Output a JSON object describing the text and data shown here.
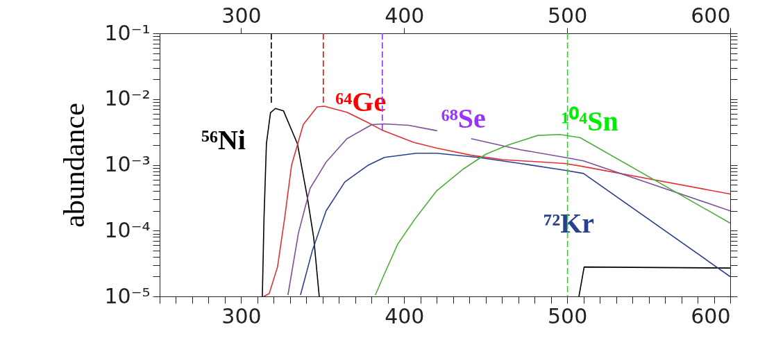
{
  "chart_data": {
    "type": "line",
    "ylabel": "abundance",
    "log": "y",
    "grid": false,
    "line_style": "solid",
    "marker": "none",
    "xlim": [
      250,
      600
    ],
    "x2lim": [
      250,
      600
    ],
    "xticks": [
      {
        "value": 250,
        "label": null
      },
      {
        "value": 260,
        "label": null
      },
      {
        "value": 270,
        "label": null
      },
      {
        "value": 280,
        "label": null
      },
      {
        "value": 290,
        "label": null
      },
      300,
      {
        "value": 310,
        "label": null
      },
      {
        "value": 320,
        "label": null
      },
      {
        "value": 330,
        "label": null
      },
      {
        "value": 340,
        "label": null
      },
      {
        "value": 350,
        "label": null
      },
      {
        "value": 360,
        "label": null
      },
      {
        "value": 370,
        "label": null
      },
      {
        "value": 380,
        "label": null
      },
      {
        "value": 390,
        "label": null
      },
      400,
      {
        "value": 410,
        "label": null
      },
      {
        "value": 420,
        "label": null
      },
      {
        "value": 430,
        "label": null
      },
      {
        "value": 440,
        "label": null
      },
      {
        "value": 450,
        "label": null
      },
      {
        "value": 460,
        "label": null
      },
      {
        "value": 470,
        "label": null
      },
      {
        "value": 480,
        "label": null
      },
      {
        "value": 490,
        "label": null
      },
      500,
      {
        "value": 510,
        "label": null
      },
      {
        "value": 520,
        "label": null
      },
      {
        "value": 530,
        "label": null
      },
      {
        "value": 540,
        "label": null
      },
      {
        "value": 550,
        "label": null
      },
      {
        "value": 560,
        "label": null
      },
      {
        "value": 570,
        "label": null
      },
      {
        "value": 580,
        "label": null
      },
      {
        "value": 590,
        "label": null
      },
      600
    ],
    "x2ticks": [
      300,
      400,
      500,
      600
    ],
    "ylim": [
      1e-05,
      0.1
    ],
    "yticks": [
      {
        "value": 1e-05,
        "label": "10⁻⁵"
      },
      {
        "value": 2e-05,
        "label": null
      },
      {
        "value": 3e-05,
        "label": null
      },
      {
        "value": 4e-05,
        "label": null
      },
      {
        "value": 5e-05,
        "label": null
      },
      {
        "value": 6e-05,
        "label": null
      },
      {
        "value": 7e-05,
        "label": null
      },
      {
        "value": 8e-05,
        "label": null
      },
      {
        "value": 9e-05,
        "label": null
      },
      {
        "value": 0.0001,
        "label": "10⁻⁴"
      },
      {
        "value": 0.0002,
        "label": null
      },
      {
        "value": 0.0003,
        "label": null
      },
      {
        "value": 0.0004,
        "label": null
      },
      {
        "value": 0.0005,
        "label": null
      },
      {
        "value": 0.0006,
        "label": null
      },
      {
        "value": 0.0007,
        "label": null
      },
      {
        "value": 0.0008,
        "label": null
      },
      {
        "value": 0.0009,
        "label": null
      },
      {
        "value": 0.001,
        "label": "10⁻³"
      },
      {
        "value": 0.002,
        "label": null
      },
      {
        "value": 0.003,
        "label": null
      },
      {
        "value": 0.004,
        "label": null
      },
      {
        "value": 0.005,
        "label": null
      },
      {
        "value": 0.006,
        "label": null
      },
      {
        "value": 0.007,
        "label": null
      },
      {
        "value": 0.008,
        "label": null
      },
      {
        "value": 0.009,
        "label": null
      },
      {
        "value": 0.01,
        "label": "10⁻²"
      },
      {
        "value": 0.02,
        "label": null
      },
      {
        "value": 0.03,
        "label": null
      },
      {
        "value": 0.04,
        "label": null
      },
      {
        "value": 0.05,
        "label": null
      },
      {
        "value": 0.06,
        "label": null
      },
      {
        "value": 0.07,
        "label": null
      },
      {
        "value": 0.08,
        "label": null
      },
      {
        "value": 0.09,
        "label": null
      },
      {
        "value": 0.1,
        "label": "10⁻¹"
      }
    ],
    "series": [
      {
        "color": "#000000",
        "x": [
          313.0,
          314.0,
          315.5,
          318,
          321,
          326,
          334.5,
          340.6,
          344.5,
          347.9
        ],
        "values": [
          1e-05,
          0.00015,
          0.0021,
          0.0062,
          0.0072,
          0.0066,
          0.0021,
          0.00032,
          7.8e-05,
          1e-05
        ]
      },
      {
        "color": "#000000",
        "x": [
          507.2,
          510.4,
          600
        ],
        "values": [
          1e-05,
          2.8e-05,
          2.7e-05
        ]
      },
      {
        "color": "#e03030",
        "x": [
          313.8,
          317.2,
          322.3,
          326.6,
          330.9,
          338.1,
          346.6,
          350.9,
          364.9,
          377.7,
          386.2,
          405.7,
          419.8,
          441.1,
          460.6,
          498.5,
          509.1,
          600
        ],
        "values": [
          1e-05,
          1.1e-05,
          2.8e-05,
          0.00015,
          0.00098,
          0.0041,
          0.0076,
          0.0078,
          0.0063,
          0.0044,
          0.0034,
          0.0022,
          0.0018,
          0.0014,
          0.0012,
          0.00105,
          0.00095,
          0.00036
        ]
      },
      {
        "color": "#7b4f9d",
        "x": [
          328.7,
          335.1,
          342.3,
          352.1,
          364.9,
          380.2,
          387.9,
          402.8,
          420.2
        ],
        "values": [
          1.05e-05,
          9.1e-05,
          0.00044,
          0.0011,
          0.0025,
          0.0041,
          0.0042,
          0.004,
          0.0033
        ]
      },
      {
        "color": "#7b4f9d",
        "x": [
          441.1,
          471.3,
          498.5,
          510.0,
          600
        ],
        "values": [
          0.0025,
          0.0017,
          0.0013,
          0.00115,
          0.0002
        ]
      },
      {
        "name": "⁷²Kr",
        "color": "#2b3f8f",
        "x": [
          336.4,
          343.6,
          352.1,
          363.6,
          377.7,
          387.9,
          407.4,
          419.8,
          445.3,
          471.3,
          498.5,
          510.0,
          600
        ],
        "values": [
          1.05e-05,
          4.9e-05,
          0.0002,
          0.00055,
          0.00098,
          0.0013,
          0.0015,
          0.0015,
          0.0013,
          0.00105,
          0.00083,
          0.00074,
          2e-05
        ]
      },
      {
        "color": "#4caf3a",
        "x": [
          382.3,
          387.9,
          396.0,
          406.6,
          419.8,
          436.4,
          450.0,
          463.6,
          481.9,
          495.5,
          507.9,
          600
        ],
        "values": [
          1.05e-05,
          2.2e-05,
          6.2e-05,
          0.00015,
          0.0004,
          0.00087,
          0.00145,
          0.002,
          0.0028,
          0.0029,
          0.0026,
          0.00013
        ]
      },
      {
        "name": "⁵⁶Ni",
        "color": "#000000",
        "line_style": "dashed",
        "x": [
          318.5,
          318.5
        ],
        "values": [
          0.1,
          0.0087
        ]
      },
      {
        "name": "⁶⁴Ge",
        "color": "#ff0000",
        "line_style": "dashed",
        "x": [
          350.4,
          350.4
        ],
        "values": [
          0.1,
          0.0081
        ]
      },
      {
        "name": "⁶⁸Se",
        "color": "#9933ff",
        "line_style": "dashed",
        "x": [
          386.6,
          386.6
        ],
        "values": [
          0.1,
          0.0034
        ]
      },
      {
        "name": "¹⁰⁴Sn",
        "color": "#00ee00",
        "line_style": "dashed",
        "x": [
          500.2,
          500.2
        ],
        "values": [
          0.1,
          1e-05
        ]
      }
    ]
  }
}
